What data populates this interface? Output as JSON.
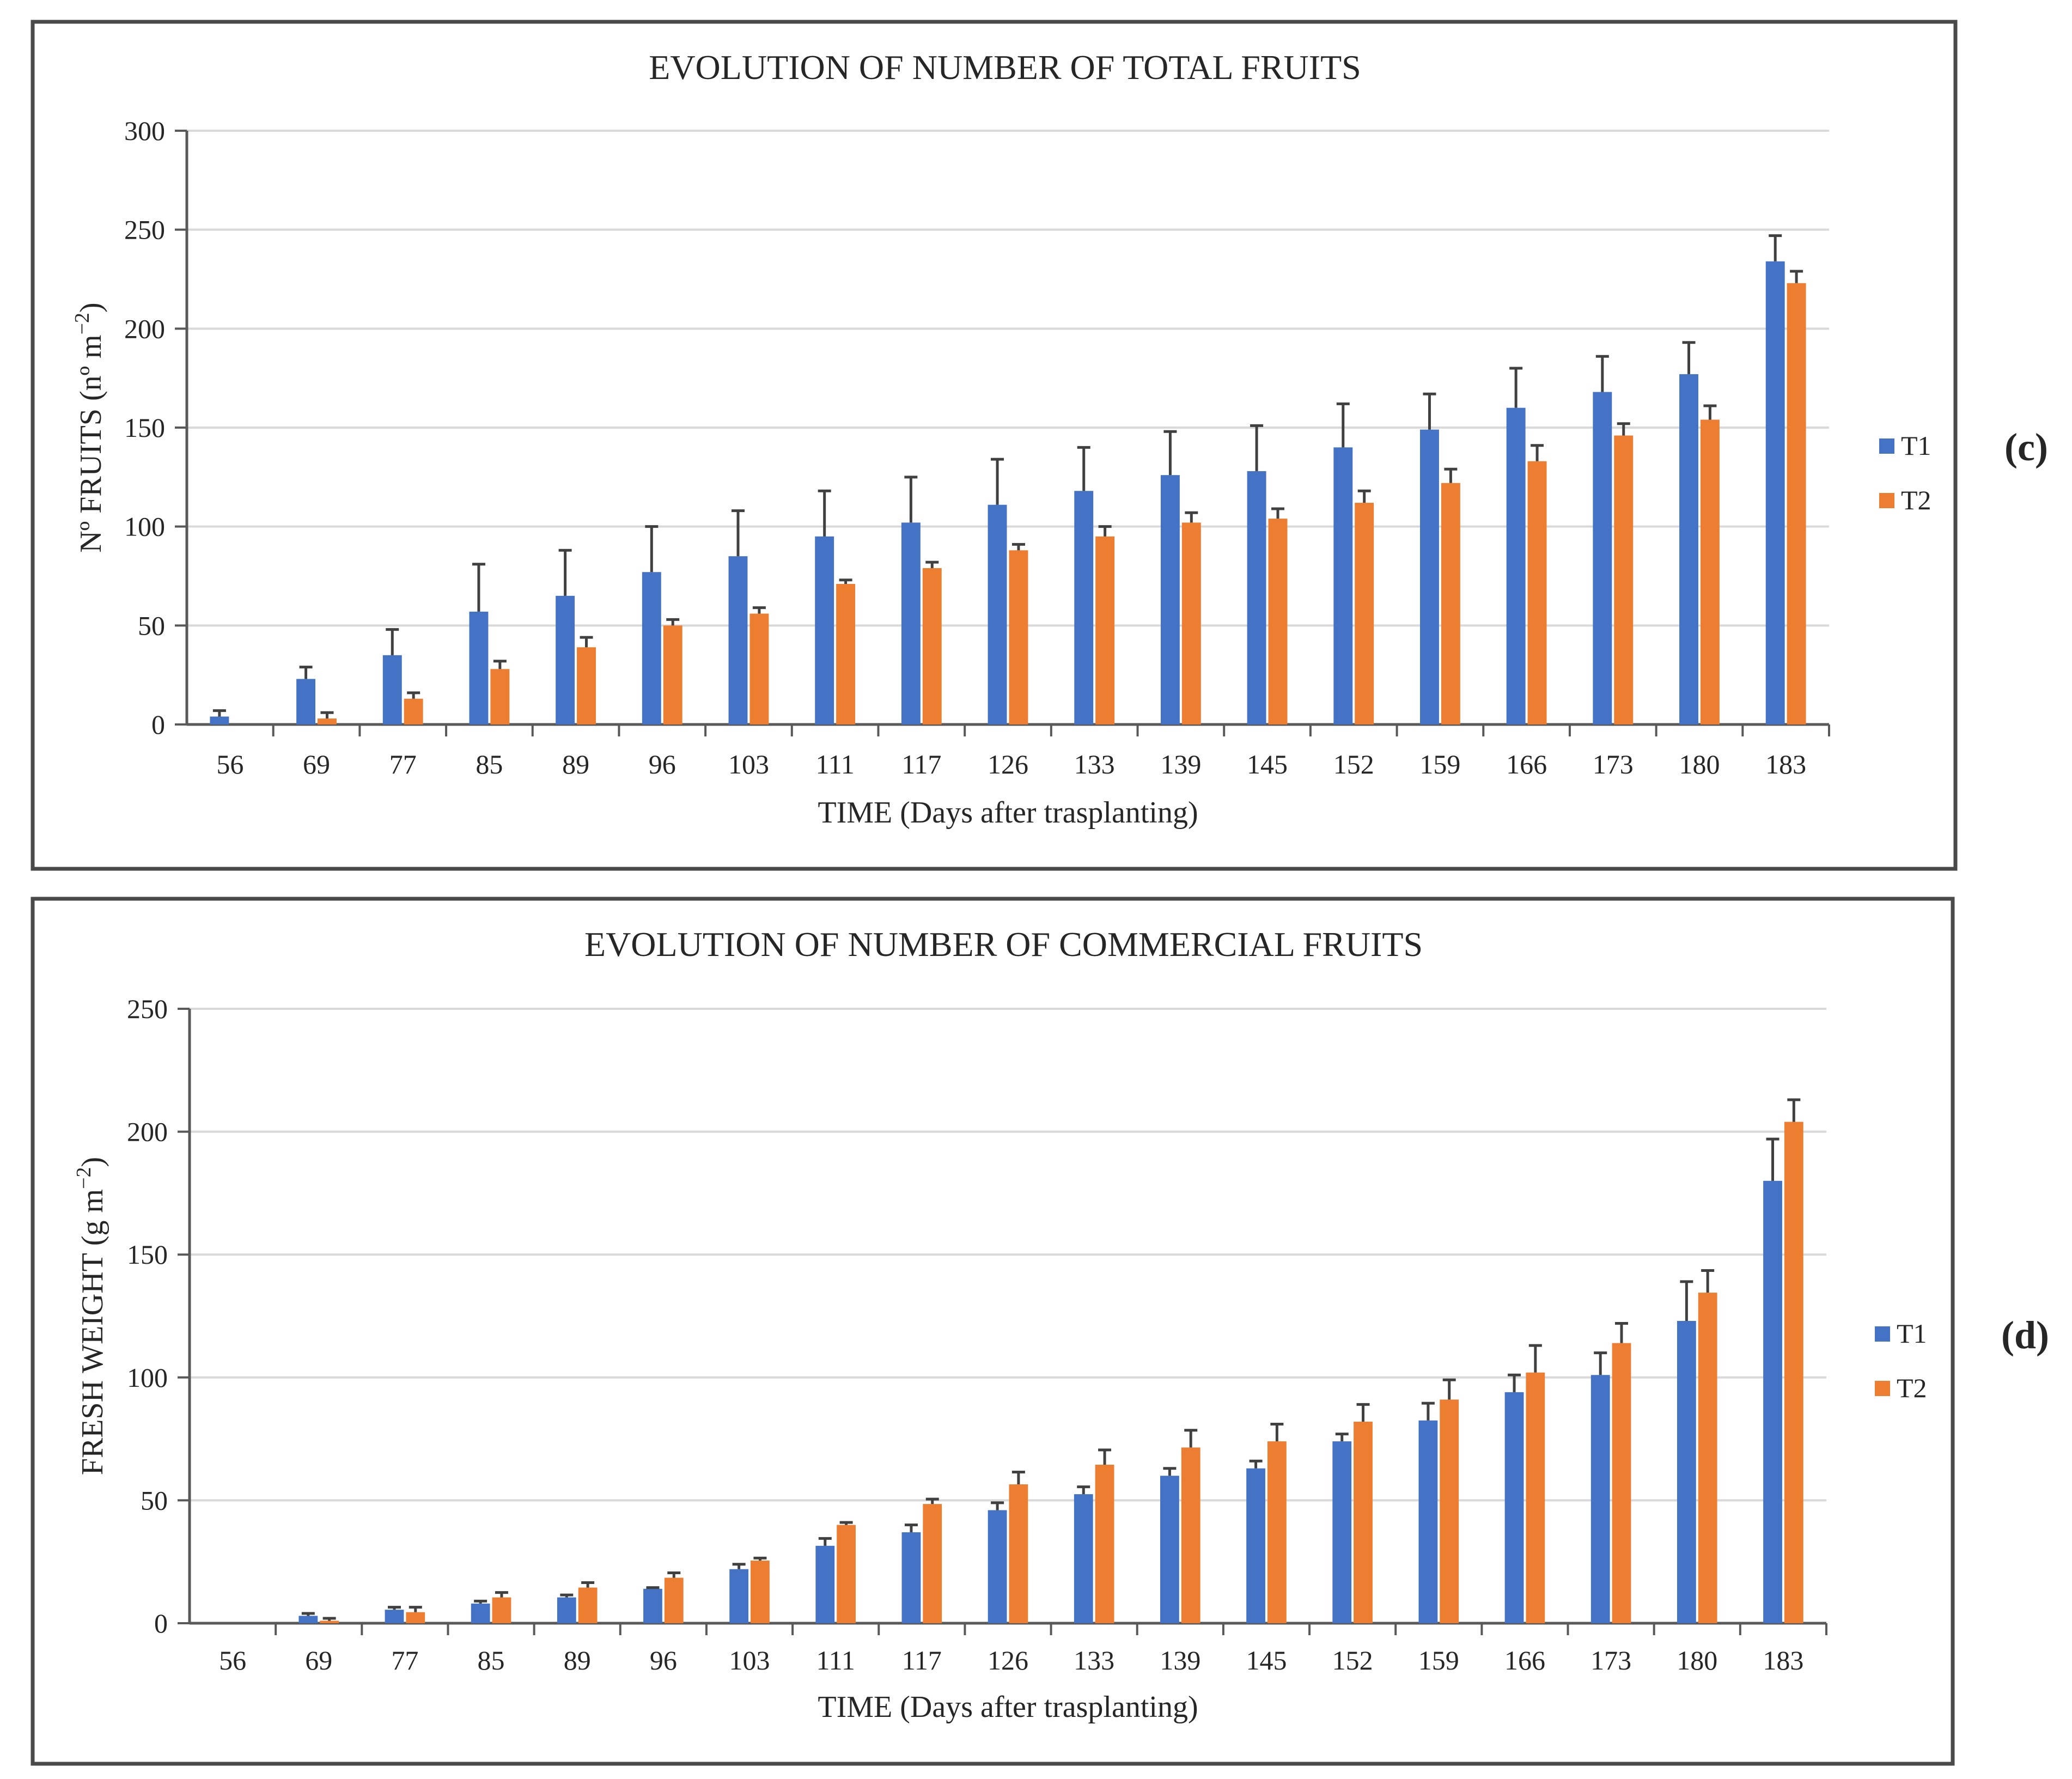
{
  "colors": {
    "t1": "#4472C4",
    "t2": "#ED7D31",
    "grid": "#D9D9D9",
    "axis": "#595959",
    "error": "#404040",
    "frame": "#4a4a4a"
  },
  "chart_data": [
    {
      "type": "bar",
      "panel_label": "(c)",
      "title": "EVOLUTION OF NUMBER OF TOTAL FRUITS",
      "xlabel": "TIME (Days after trasplanting)",
      "ylabel_main": "Nº FRUITS (nº m",
      "ylabel_sup": "−2",
      "ylabel_close": ")",
      "ylim": [
        0,
        300
      ],
      "yticks": [
        "0",
        "50",
        "100",
        "150",
        "200",
        "250",
        "300"
      ],
      "categories": [
        "56",
        "69",
        "77",
        "85",
        "89",
        "96",
        "103",
        "111",
        "117",
        "126",
        "133",
        "139",
        "145",
        "152",
        "159",
        "166",
        "173",
        "180",
        "183"
      ],
      "series": [
        {
          "name": "T1",
          "values": [
            4,
            23,
            35,
            57,
            65,
            77,
            85,
            95,
            102,
            111,
            118,
            126,
            128,
            140,
            149,
            160,
            168,
            177,
            234
          ],
          "errors": [
            3,
            6,
            13,
            24,
            23,
            23,
            23,
            23,
            23,
            23,
            22,
            22,
            23,
            22,
            18,
            20,
            18,
            16,
            13
          ]
        },
        {
          "name": "T2",
          "values": [
            0,
            3,
            13,
            28,
            39,
            50,
            56,
            71,
            79,
            88,
            95,
            102,
            104,
            112,
            122,
            133,
            146,
            154,
            223
          ],
          "errors": [
            0,
            3,
            3,
            4,
            5,
            3,
            3,
            2,
            3,
            3,
            5,
            5,
            5,
            6,
            7,
            8,
            6,
            7,
            6
          ]
        }
      ],
      "legend": [
        "T1",
        "T2"
      ]
    },
    {
      "type": "bar",
      "panel_label": "(d)",
      "title": "EVOLUTION OF NUMBER OF COMMERCIAL FRUITS",
      "xlabel": "TIME (Days after trasplanting)",
      "ylabel_main": "FRESH WEIGHT (g m",
      "ylabel_sup": "−2",
      "ylabel_close": ")",
      "ylim": [
        0,
        250
      ],
      "yticks": [
        "0",
        "50",
        "100",
        "150",
        "200",
        "250"
      ],
      "categories": [
        "56",
        "69",
        "77",
        "85",
        "89",
        "96",
        "103",
        "111",
        "117",
        "126",
        "133",
        "139",
        "145",
        "152",
        "159",
        "166",
        "173",
        "180",
        "183"
      ],
      "series": [
        {
          "name": "T1",
          "values": [
            0,
            3,
            5.5,
            8,
            10.5,
            14,
            22,
            31.5,
            37,
            46,
            52.5,
            60,
            63,
            74,
            82.5,
            94,
            101,
            123,
            180
          ],
          "errors": [
            0,
            1,
            1,
            1,
            1,
            0.5,
            2,
            3,
            3,
            3,
            3,
            3,
            3,
            3,
            7,
            7,
            9,
            16,
            17
          ]
        },
        {
          "name": "T2",
          "values": [
            0,
            1,
            4.5,
            10.5,
            14.5,
            18.5,
            25.5,
            40,
            48.5,
            56.5,
            64.5,
            71.5,
            74,
            82,
            91,
            102,
            114,
            134.5,
            204
          ],
          "errors": [
            0,
            1,
            2,
            2,
            2,
            2,
            1,
            1,
            2,
            5,
            6,
            7,
            7,
            7,
            8,
            11,
            8,
            9,
            9
          ]
        }
      ],
      "legend": [
        "T1",
        "T2"
      ]
    }
  ]
}
